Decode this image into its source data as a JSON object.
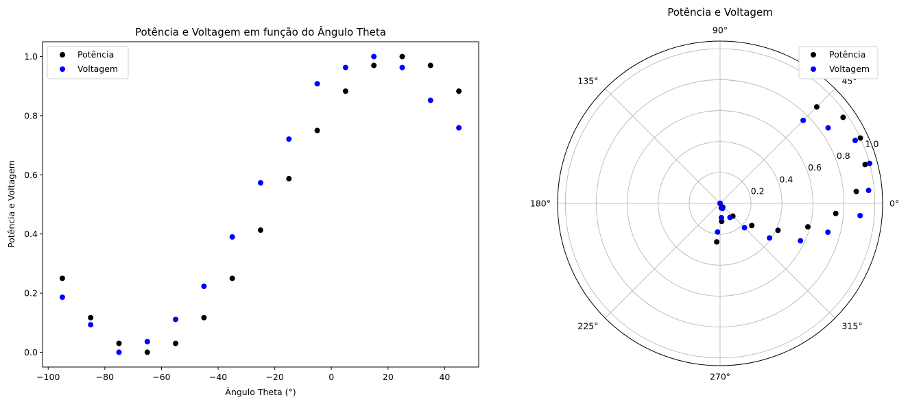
{
  "chart_data": [
    {
      "type": "scatter",
      "title": "Potência e Voltagem em função do Ângulo Theta",
      "xlabel": "Ângulo Theta (°)",
      "ylabel": "Potência e Voltagem",
      "xlim": [
        -102,
        52
      ],
      "ylim": [
        -0.05,
        1.05
      ],
      "xticks": [
        "−100",
        "−80",
        "−60",
        "−40",
        "−20",
        "0",
        "20",
        "40"
      ],
      "xtick_values": [
        -100,
        -80,
        -60,
        -40,
        -20,
        0,
        20,
        40
      ],
      "yticks": [
        "0.0",
        "0.2",
        "0.4",
        "0.6",
        "0.8",
        "1.0"
      ],
      "ytick_values": [
        0,
        0.2,
        0.4,
        0.6,
        0.8,
        1.0
      ],
      "legend_position": "upper-left",
      "x": [
        -95,
        -85,
        -75,
        -65,
        -55,
        -45,
        -35,
        -25,
        -15,
        -5,
        5,
        15,
        25,
        35,
        45
      ],
      "series": [
        {
          "name": "Potência",
          "color": "#000000",
          "values": [
            0.25,
            0.117,
            0.03,
            0.0,
            0.03,
            0.117,
            0.25,
            0.413,
            0.587,
            0.75,
            0.883,
            0.97,
            1.0,
            0.97,
            0.883
          ]
        },
        {
          "name": "Voltagem",
          "color": "#0000ff",
          "values": [
            0.186,
            0.093,
            0.0,
            0.036,
            0.111,
            0.223,
            0.39,
            0.573,
            0.721,
            0.908,
            0.963,
            1.0,
            0.963,
            0.852,
            0.759
          ]
        }
      ]
    },
    {
      "type": "scatter",
      "polar": true,
      "title": "Potência e Voltagem",
      "rlim": [
        0,
        1.05
      ],
      "rticks": [
        "0.2",
        "0.4",
        "0.6",
        "0.8",
        "1.0"
      ],
      "rtick_values": [
        0.2,
        0.4,
        0.6,
        0.8,
        1.0
      ],
      "angle_ticks": [
        "0°",
        "45°",
        "90°",
        "135°",
        "180°",
        "225°",
        "270°",
        "315°"
      ],
      "angle_tick_values": [
        0,
        45,
        90,
        135,
        180,
        225,
        270,
        315
      ],
      "legend_position": "upper-right",
      "theta_deg": [
        -95,
        -85,
        -75,
        -65,
        -55,
        -45,
        -35,
        -25,
        -15,
        -5,
        5,
        15,
        25,
        35,
        45
      ],
      "series": [
        {
          "name": "Potência",
          "color": "#000000",
          "values": [
            0.25,
            0.117,
            0.03,
            0.0,
            0.03,
            0.117,
            0.25,
            0.413,
            0.587,
            0.75,
            0.883,
            0.97,
            1.0,
            0.97,
            0.883
          ]
        },
        {
          "name": "Voltagem",
          "color": "#0000ff",
          "values": [
            0.186,
            0.093,
            0.0,
            0.036,
            0.111,
            0.223,
            0.39,
            0.573,
            0.721,
            0.908,
            0.963,
            1.0,
            0.963,
            0.852,
            0.759
          ]
        }
      ]
    }
  ]
}
